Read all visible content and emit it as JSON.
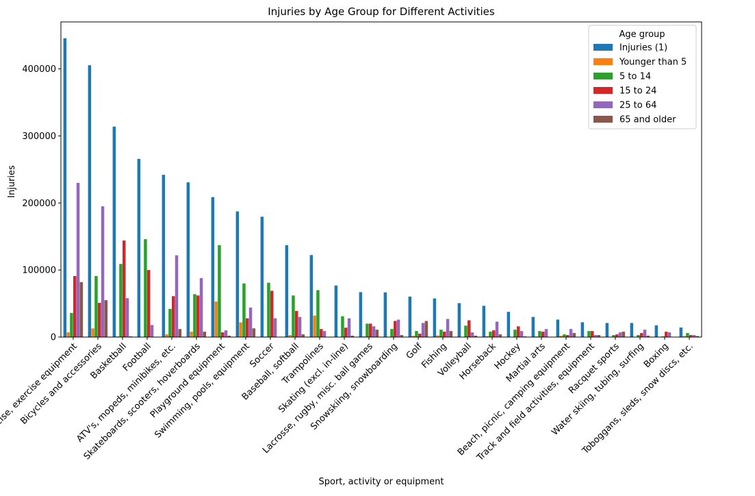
{
  "chart_data": {
    "type": "bar",
    "title": "Injuries by Age Group for Different Activities",
    "xlabel": "Sport, activity or equipment",
    "ylabel": "Injuries",
    "ylim": [
      0,
      470000
    ],
    "yticks": [
      0,
      100000,
      200000,
      300000,
      400000
    ],
    "grid": false,
    "legend": {
      "title": "Age group",
      "placement": "top-right"
    },
    "categories": [
      "Exercise, exercise equipment",
      "Bicycles and accessories",
      "Basketball",
      "Football",
      "ATV's, mopeds, minibikes, etc.",
      "Skateboards, scooters, hoverboards",
      "Playground equipment",
      "Swimming, pools, equipment",
      "Soccer",
      "Baseball, softball",
      "Trampolines",
      "Skating (excl. in-line)",
      "Lacrosse, rugby, misc. ball games",
      "Snowskiing, snowboarding",
      "Golf",
      "Fishing",
      "Volleyball",
      "Horseback",
      "Hockey",
      "Martial arts",
      "Beach, picnic, camping equipment",
      "Track and field activities, equipment",
      "Racquet sports",
      "Water skiing, tubing, surfing",
      "Boxing",
      "Toboggans, sleds, snow discs, etc."
    ],
    "series": [
      {
        "name": "Injuries (1)",
        "color": "#1f77b4",
        "values": [
          445600,
          405400,
          313900,
          265700,
          242000,
          230700,
          208700,
          187400,
          179500,
          137000,
          122300,
          76900,
          67000,
          66600,
          60400,
          57600,
          50600,
          46600,
          37600,
          30000,
          26100,
          22100,
          21000,
          21000,
          17500,
          14200
        ]
      },
      {
        "name": "Younger than 5",
        "color": "#ff7f0e",
        "values": [
          7000,
          13000,
          1000,
          300,
          4000,
          8000,
          53000,
          22000,
          700,
          3000,
          32000,
          500,
          1000,
          300,
          2000,
          2500,
          200,
          1500,
          300,
          1000,
          2000,
          400,
          300,
          300,
          200,
          1500
        ]
      },
      {
        "name": "5 to 14",
        "color": "#2ca02c",
        "values": [
          36000,
          91000,
          109000,
          146000,
          42000,
          64000,
          137000,
          80000,
          81000,
          62000,
          70000,
          31000,
          20000,
          12000,
          9000,
          11000,
          17000,
          8000,
          11000,
          9000,
          4000,
          9000,
          3000,
          3000,
          1000,
          6000
        ]
      },
      {
        "name": "15 to 24",
        "color": "#d62728",
        "values": [
          91000,
          51000,
          144000,
          100000,
          61000,
          62000,
          7000,
          28000,
          69000,
          39000,
          12000,
          14000,
          20000,
          24000,
          5000,
          8000,
          25000,
          10000,
          16000,
          8000,
          3000,
          9000,
          4000,
          6000,
          8000,
          3000
        ]
      },
      {
        "name": "25 to 64",
        "color": "#9467bd",
        "values": [
          230000,
          195000,
          58000,
          18000,
          122000,
          88000,
          10000,
          44000,
          28000,
          30000,
          9000,
          28000,
          16000,
          26000,
          21000,
          27000,
          7000,
          23000,
          9000,
          12000,
          12000,
          3000,
          7000,
          11000,
          7000,
          3000
        ]
      },
      {
        "name": "65 and older",
        "color": "#8c564b",
        "values": [
          82000,
          55000,
          1000,
          300,
          12000,
          8000,
          2000,
          13000,
          200,
          4000,
          500,
          2000,
          11000,
          3000,
          24000,
          9000,
          2000,
          4000,
          1000,
          500,
          6000,
          3000,
          8000,
          2000,
          200,
          1500
        ]
      }
    ]
  }
}
